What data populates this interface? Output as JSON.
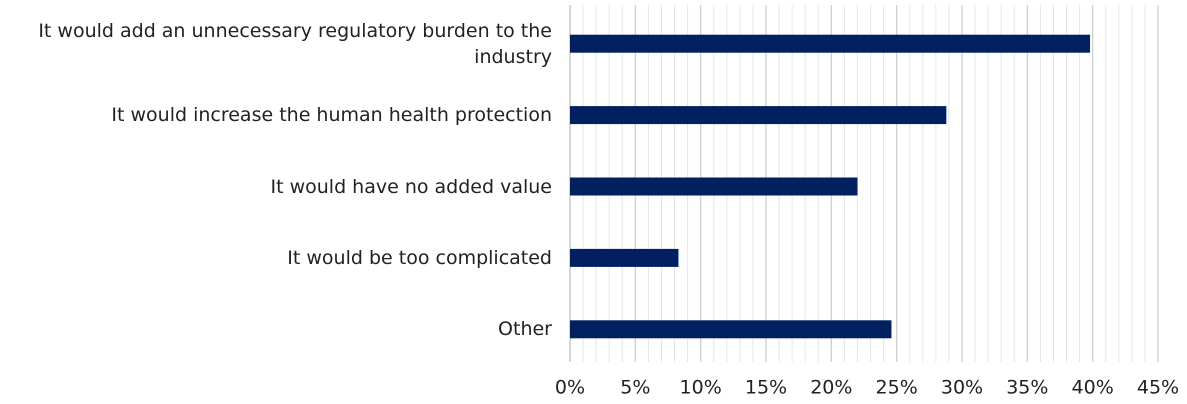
{
  "chart_data": {
    "type": "bar",
    "orientation": "horizontal",
    "categories": [
      "It would add an unnecessary regulatory burden to the industry",
      "It would increase the human health protection",
      "It would have no added value",
      "It would be too complicated",
      "Other"
    ],
    "values": [
      39.8,
      28.8,
      22,
      8.3,
      24.6
    ],
    "color": "#002060",
    "xlim": [
      0,
      45
    ],
    "xticks": [
      {
        "value": 0,
        "label": "0%"
      },
      {
        "value": 5,
        "label": "5%"
      },
      {
        "value": 10,
        "label": "10%"
      },
      {
        "value": 15,
        "label": "15%"
      },
      {
        "value": 20,
        "label": "20%"
      },
      {
        "value": 25,
        "label": "25%"
      },
      {
        "value": 30,
        "label": "30%"
      },
      {
        "value": 35,
        "label": "35%"
      },
      {
        "value": 40,
        "label": "40%"
      },
      {
        "value": 45,
        "label": "45%"
      }
    ],
    "grid": true,
    "minor_grid": true
  }
}
